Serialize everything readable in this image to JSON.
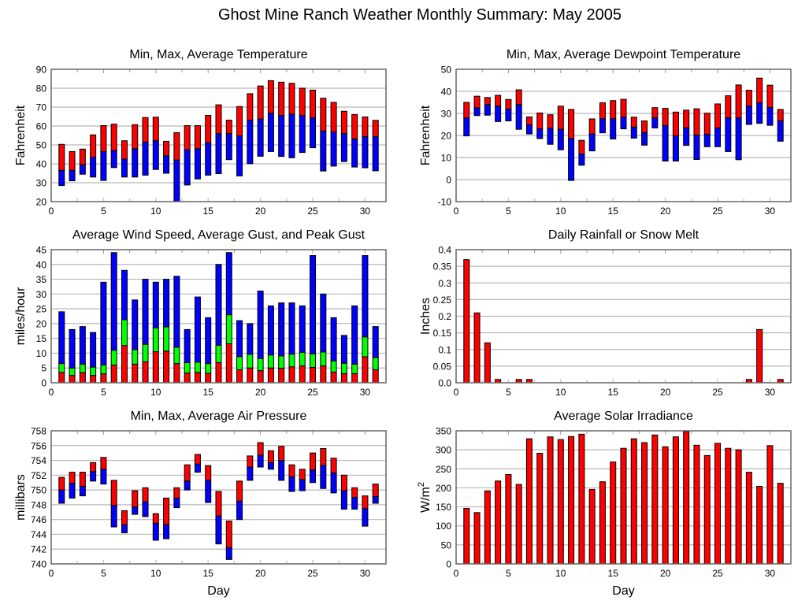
{
  "page_title": "Ghost Mine Ranch Weather Monthly Summary: May 2005",
  "colors": {
    "red": "#ff0000",
    "blue": "#0000ff",
    "green": "#00ff00",
    "grid": "#b8b8b8",
    "frame": "#666666"
  },
  "chart_data": [
    {
      "id": "temperature",
      "type": "bar",
      "subtype": "floating-stacked",
      "title": "Min, Max, Average Temperature",
      "xlabel": "",
      "ylabel": "Fahrenheit",
      "xlim": [
        0,
        32
      ],
      "ylim": [
        20,
        90
      ],
      "xticks": [
        0,
        5,
        10,
        15,
        20,
        25,
        30
      ],
      "yticks": [
        20,
        30,
        40,
        50,
        60,
        70,
        80,
        90
      ],
      "grid": true,
      "x": [
        1,
        2,
        3,
        4,
        5,
        6,
        7,
        8,
        9,
        10,
        11,
        12,
        13,
        14,
        15,
        16,
        17,
        18,
        19,
        20,
        21,
        22,
        23,
        24,
        25,
        26,
        27,
        28,
        29,
        30,
        31
      ],
      "series": [
        {
          "name": "Min",
          "values": [
            28.5,
            31,
            34.5,
            33,
            31.2,
            38,
            33,
            33,
            34,
            37,
            35,
            20,
            28.8,
            32,
            34,
            34.8,
            42.2,
            33.6,
            40.1,
            44,
            46.5,
            43.9,
            43.2,
            46,
            48.5,
            36.2,
            38.8,
            41.2,
            38.3,
            37.9,
            36.3
          ]
        },
        {
          "name": "Average",
          "values": [
            36.5,
            36.5,
            39.5,
            43.5,
            46.5,
            47,
            42.5,
            48,
            51.5,
            52.2,
            44.3,
            42,
            47.5,
            48,
            51.2,
            56,
            56,
            54.8,
            63.1,
            63.7,
            66.8,
            65.6,
            66.3,
            65.6,
            64.3,
            57.4,
            56.9,
            56,
            53.2,
            54.4,
            54.4
          ]
        },
        {
          "name": "Max",
          "values": [
            50.3,
            46.5,
            47.8,
            55.3,
            60.2,
            61,
            52.2,
            60.7,
            64.5,
            64.7,
            51.9,
            56.5,
            60.2,
            60.2,
            65.6,
            71.2,
            63.1,
            70.3,
            77.1,
            81.2,
            84,
            83.2,
            82.6,
            80,
            79,
            74.7,
            72.5,
            67.8,
            66.1,
            64.8,
            63
          ]
        }
      ],
      "bands": [
        {
          "from": "Min",
          "to": "Average",
          "color": "blue"
        },
        {
          "from": "Average",
          "to": "Max",
          "color": "red"
        }
      ]
    },
    {
      "id": "dewpoint",
      "type": "bar",
      "subtype": "floating-stacked",
      "title": "Min, Max, Average Dewpoint Temperature",
      "xlabel": "",
      "ylabel": "Fahrenheit",
      "xlim": [
        0,
        32
      ],
      "ylim": [
        -10,
        50
      ],
      "xticks": [
        0,
        5,
        10,
        15,
        20,
        25,
        30
      ],
      "yticks": [
        -10,
        0,
        10,
        20,
        30,
        40,
        50
      ],
      "grid": true,
      "x": [
        1,
        2,
        3,
        4,
        5,
        6,
        7,
        8,
        9,
        10,
        11,
        12,
        13,
        14,
        15,
        16,
        17,
        18,
        19,
        20,
        21,
        22,
        23,
        24,
        25,
        26,
        27,
        28,
        29,
        30,
        31
      ],
      "series": [
        {
          "name": "Min",
          "values": [
            19.8,
            29,
            29.2,
            26.3,
            26.6,
            22.8,
            20.7,
            18.6,
            16,
            13.5,
            -0.4,
            6.5,
            13,
            21.2,
            18.4,
            23,
            18.8,
            15.6,
            23.4,
            8.4,
            8.4,
            15.5,
            9.1,
            14.9,
            14.9,
            12.7,
            9,
            25,
            25.5,
            24.6,
            17.4
          ]
        },
        {
          "name": "Average",
          "values": [
            28,
            32.5,
            34,
            33.3,
            32,
            34,
            24.8,
            23,
            23.3,
            22.8,
            18.7,
            11.6,
            20.7,
            27.6,
            27.6,
            28.3,
            23.8,
            21.3,
            28,
            24.5,
            19.8,
            23.5,
            20.2,
            20.6,
            23.4,
            28,
            28,
            33.3,
            34.8,
            32.7,
            26.6
          ]
        },
        {
          "name": "Max",
          "values": [
            35,
            37.8,
            37.2,
            38.2,
            36.3,
            40.7,
            28.4,
            30.2,
            29.4,
            33.3,
            31.8,
            17.8,
            27.5,
            34.8,
            35.8,
            36.4,
            28.3,
            26.6,
            32.6,
            32.3,
            30.6,
            31.5,
            32.1,
            30.1,
            34.3,
            38,
            42.9,
            40.5,
            46,
            42.8,
            31.8
          ]
        }
      ],
      "bands": [
        {
          "from": "Min",
          "to": "Average",
          "color": "blue"
        },
        {
          "from": "Average",
          "to": "Max",
          "color": "red"
        }
      ]
    },
    {
      "id": "wind",
      "type": "bar",
      "subtype": "stacked",
      "title": "Average Wind Speed, Average Gust, and Peak Gust",
      "xlabel": "",
      "ylabel": "miles/hour",
      "xlim": [
        0,
        32
      ],
      "ylim": [
        0,
        45
      ],
      "xticks": [
        0,
        5,
        10,
        15,
        20,
        25,
        30
      ],
      "yticks": [
        0,
        5,
        10,
        15,
        20,
        25,
        30,
        35,
        40,
        45
      ],
      "grid": true,
      "x": [
        1,
        2,
        3,
        4,
        5,
        6,
        7,
        8,
        9,
        10,
        11,
        12,
        13,
        14,
        15,
        16,
        17,
        18,
        19,
        20,
        21,
        22,
        23,
        24,
        25,
        26,
        27,
        28,
        29,
        30,
        31
      ],
      "series": [
        {
          "name": "Average Wind Speed",
          "values": [
            3.5,
            2.5,
            3.4,
            2.5,
            3,
            6,
            12.6,
            6.3,
            7.1,
            10.5,
            10.7,
            6.5,
            3.3,
            3.5,
            3.2,
            6.8,
            13.2,
            4.4,
            5,
            4.1,
            5,
            4.9,
            5.4,
            5.7,
            5.2,
            5.7,
            3.6,
            3.1,
            3.1,
            8.8,
            4.4
          ]
        },
        {
          "name": "Average Gust",
          "values": [
            6.5,
            5,
            6.3,
            5.3,
            6,
            11,
            21.3,
            11.2,
            13,
            18.6,
            18.9,
            12,
            6.8,
            7,
            6.5,
            12.7,
            23,
            8.8,
            9.6,
            8.2,
            9.4,
            9.1,
            9.7,
            10.3,
            9.8,
            10.4,
            7.4,
            6.6,
            6.3,
            15.5,
            8.5
          ]
        },
        {
          "name": "Peak Gust",
          "values": [
            24,
            18,
            19,
            17,
            34,
            44,
            38,
            28,
            35,
            34,
            35,
            36,
            18,
            29,
            22,
            40,
            44,
            21,
            20,
            31,
            26,
            27,
            27,
            26,
            43,
            30,
            22,
            16,
            26,
            43,
            19
          ]
        }
      ],
      "bands": [
        {
          "from": "zero",
          "to": "Average Wind Speed",
          "color": "red"
        },
        {
          "from": "Average Wind Speed",
          "to": "Average Gust",
          "color": "green"
        },
        {
          "from": "Average Gust",
          "to": "Peak Gust",
          "color": "blue"
        }
      ]
    },
    {
      "id": "rainfall",
      "type": "bar",
      "title": "Daily Rainfall or Snow Melt",
      "xlabel": "",
      "ylabel": "Inches",
      "xlim": [
        0,
        32
      ],
      "ylim": [
        0,
        0.4
      ],
      "xticks": [
        0,
        5,
        10,
        15,
        20,
        25,
        30
      ],
      "yticks": [
        0,
        0.05,
        0.1,
        0.15,
        0.2,
        0.25,
        0.3,
        0.35,
        0.4
      ],
      "ytick_labels": [
        "0.0",
        "0.05",
        "0.1",
        "0.15",
        "0.2",
        "0.25",
        "0.3",
        "0.35",
        "0.4"
      ],
      "grid": true,
      "x": [
        1,
        2,
        3,
        4,
        5,
        6,
        7,
        8,
        9,
        10,
        11,
        12,
        13,
        14,
        15,
        16,
        17,
        18,
        19,
        20,
        21,
        22,
        23,
        24,
        25,
        26,
        27,
        28,
        29,
        30,
        31
      ],
      "series": [
        {
          "name": "Rainfall",
          "values": [
            0.37,
            0.21,
            0.12,
            0.01,
            0,
            0.01,
            0.01,
            0,
            0,
            0,
            0,
            0,
            0,
            0,
            0,
            0,
            0,
            0,
            0,
            0,
            0,
            0,
            0,
            0,
            0,
            0,
            0,
            0.01,
            0.16,
            0,
            0.01
          ]
        }
      ],
      "bands": [
        {
          "from": "zero",
          "to": "Rainfall",
          "color": "red"
        }
      ]
    },
    {
      "id": "pressure",
      "type": "bar",
      "subtype": "floating-stacked",
      "title": "Min, Max, Average Air Pressure",
      "xlabel": "Day",
      "ylabel": "millibars",
      "xlim": [
        0,
        32
      ],
      "ylim": [
        740,
        758
      ],
      "xticks": [
        0,
        5,
        10,
        15,
        20,
        25,
        30
      ],
      "yticks": [
        740,
        742,
        744,
        746,
        748,
        750,
        752,
        754,
        756,
        758
      ],
      "grid": true,
      "x": [
        1,
        2,
        3,
        4,
        5,
        6,
        7,
        8,
        9,
        10,
        11,
        12,
        13,
        14,
        15,
        16,
        17,
        18,
        19,
        20,
        21,
        22,
        23,
        24,
        25,
        26,
        27,
        28,
        29,
        30,
        31
      ],
      "series": [
        {
          "name": "Min",
          "values": [
            748.2,
            748.9,
            749.2,
            751.2,
            750.8,
            745,
            744.2,
            746.7,
            746.4,
            743.2,
            743.4,
            747.6,
            750,
            752.4,
            748.3,
            742.7,
            740.6,
            746,
            751.3,
            753.1,
            752.8,
            751.3,
            749.8,
            749.9,
            751,
            750.2,
            749.6,
            747.4,
            747.4,
            745.1,
            748.2
          ]
        },
        {
          "name": "Average",
          "values": [
            750,
            750.9,
            750.5,
            752.5,
            752.8,
            747.9,
            745.3,
            747.7,
            748.4,
            745.5,
            745.3,
            748.9,
            751.2,
            753.5,
            751.3,
            746.5,
            742.2,
            748.5,
            753.1,
            754.7,
            753.7,
            754,
            751.8,
            751.4,
            752.7,
            753.3,
            752.3,
            749.9,
            749,
            747.5,
            749.1
          ]
        },
        {
          "name": "Max",
          "values": [
            751.7,
            752.4,
            752.4,
            753.7,
            754.4,
            751.3,
            747.2,
            749.9,
            750.3,
            746.8,
            748.9,
            750.3,
            753.4,
            754.8,
            753.3,
            749.8,
            745.8,
            751.2,
            754.6,
            756.4,
            755.3,
            755.9,
            753.4,
            752.8,
            755,
            755.6,
            754.3,
            752,
            750.3,
            749.2,
            750.8
          ]
        }
      ],
      "bands": [
        {
          "from": "Min",
          "to": "Average",
          "color": "blue"
        },
        {
          "from": "Average",
          "to": "Max",
          "color": "red"
        }
      ]
    },
    {
      "id": "solar",
      "type": "bar",
      "title": "Average Solar Irradiance",
      "xlabel": "Day",
      "ylabel": "W/m",
      "ylabel_superscript": "2",
      "xlim": [
        0,
        32
      ],
      "ylim": [
        0,
        350
      ],
      "xticks": [
        0,
        5,
        10,
        15,
        20,
        25,
        30
      ],
      "yticks": [
        0,
        50,
        100,
        150,
        200,
        250,
        300,
        350
      ],
      "grid": true,
      "x": [
        1,
        2,
        3,
        4,
        5,
        6,
        7,
        8,
        9,
        10,
        11,
        12,
        13,
        14,
        15,
        16,
        17,
        18,
        19,
        20,
        21,
        22,
        23,
        24,
        25,
        26,
        27,
        28,
        29,
        30,
        31
      ],
      "series": [
        {
          "name": "Solar Irradiance",
          "values": [
            146,
            135,
            192,
            218,
            235,
            209,
            329,
            291,
            334,
            327,
            335,
            341,
            196,
            216,
            268,
            304,
            329,
            319,
            339,
            308,
            334,
            348,
            312,
            285,
            317,
            304,
            300,
            241,
            204,
            311,
            212
          ]
        }
      ],
      "bands": [
        {
          "from": "zero",
          "to": "Solar Irradiance",
          "color": "red"
        }
      ]
    }
  ]
}
